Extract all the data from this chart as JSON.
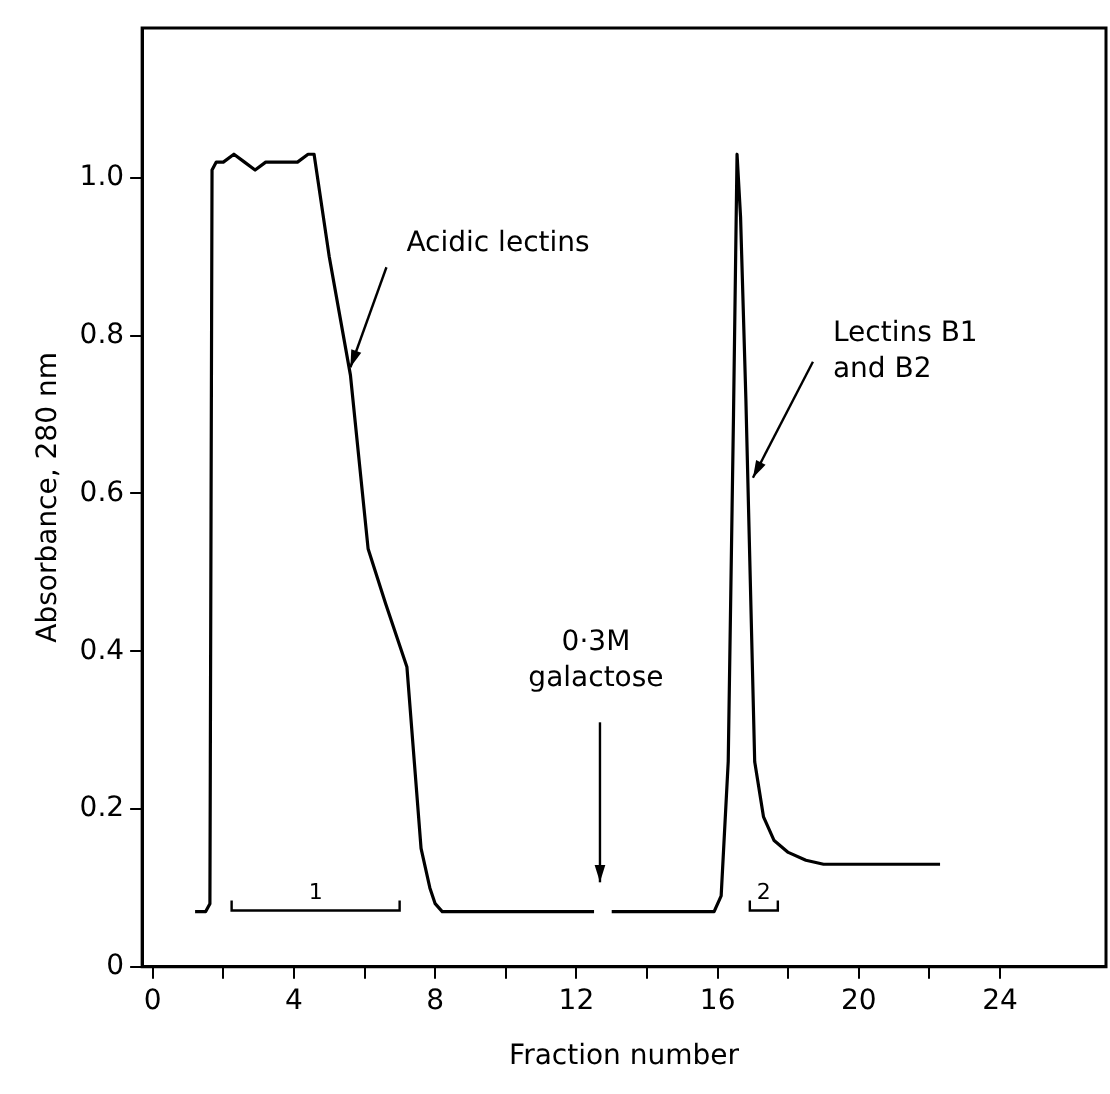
{
  "chart_data": {
    "type": "line",
    "xlabel": "Fraction number",
    "ylabel": "Absorbance, 280 nm",
    "xlim": [
      -0.3,
      27
    ],
    "ylim": [
      0,
      1.19
    ],
    "xticks": [
      0,
      {
        "value": 2,
        "label": null
      },
      4,
      {
        "value": 6,
        "label": null
      },
      8,
      {
        "value": 10,
        "label": null
      },
      12,
      {
        "value": 14,
        "label": null
      },
      16,
      {
        "value": 18,
        "label": null
      },
      20,
      {
        "value": 22,
        "label": null
      },
      24
    ],
    "yticks": [
      0,
      0.2,
      0.4,
      0.6,
      0.8,
      {
        "value": 1,
        "label": "1.0"
      }
    ],
    "grid": false,
    "legend": false,
    "marker": "none",
    "line_style": "solid",
    "series": [
      {
        "color": "#000000",
        "x": [
          1.2,
          1.5,
          1.62,
          1.68,
          1.8,
          2.0,
          2.3,
          2.6,
          2.9,
          3.2,
          3.5,
          3.8,
          4.1,
          4.4,
          4.57,
          5.0,
          5.6,
          6.1,
          6.6,
          7.2,
          7.6,
          7.85,
          8.0,
          8.2,
          8.4,
          10.0,
          12.5,
          12.75,
          13.0,
          15.0,
          15.9,
          16.1,
          16.3,
          16.45,
          16.55,
          16.65,
          16.8,
          17.05,
          17.3,
          17.6,
          18.0,
          18.5,
          19.0,
          20.0,
          22.3
        ],
        "values": [
          0.07,
          0.07,
          0.08,
          1.01,
          1.02,
          1.02,
          1.03,
          1.02,
          1.01,
          1.02,
          1.02,
          1.02,
          1.02,
          1.03,
          1.03,
          0.9,
          0.75,
          0.53,
          0.46,
          0.38,
          0.15,
          0.1,
          0.08,
          0.07,
          0.07,
          0.07,
          0.07,
          null,
          0.07,
          0.07,
          0.07,
          0.09,
          0.26,
          0.7,
          1.03,
          0.95,
          0.72,
          0.26,
          0.19,
          0.16,
          0.145,
          0.135,
          0.13,
          0.13,
          0.13
        ]
      }
    ],
    "annotations": [
      {
        "text": "Acidic lectins",
        "x": 5.6,
        "y": 0.76
      },
      "0·3M\ngalactose",
      {
        "text": "Lectins B1\nand B2",
        "x": 17.0,
        "y": 0.62
      },
      "1",
      "2"
    ]
  }
}
